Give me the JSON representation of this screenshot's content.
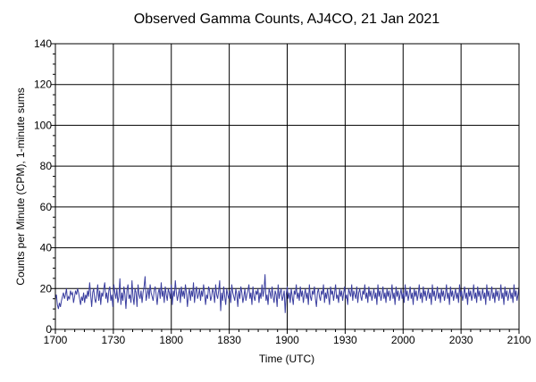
{
  "chart_data": {
    "type": "line",
    "title": "Observed Gamma Counts, AJ4CO, 21 Jan 2021",
    "xlabel": "Time (UTC)",
    "ylabel": "Counts per Minute (CPM), 1-minute sums",
    "x_ticks": [
      "1700",
      "1730",
      "1800",
      "1830",
      "1900",
      "1930",
      "2000",
      "2030",
      "2100"
    ],
    "y_ticks": [
      "0",
      "20",
      "40",
      "60",
      "80",
      "100",
      "120",
      "140"
    ],
    "xlim": [
      "1700",
      "2100"
    ],
    "ylim": [
      0,
      140
    ],
    "grid": true,
    "series": [
      {
        "color": "#3b3fa0",
        "x_start": "1700",
        "x_end": "2100",
        "interval": "1 minute",
        "values": [
          15,
          17,
          12,
          10,
          13,
          11,
          14,
          16,
          18,
          15,
          17,
          20,
          14,
          16,
          15,
          19,
          17,
          18,
          13,
          16,
          19,
          17,
          20,
          18,
          15,
          12,
          16,
          14,
          18,
          13,
          17,
          15,
          19,
          16,
          23,
          17,
          11,
          18,
          20,
          15,
          13,
          17,
          22,
          14,
          19,
          12,
          18,
          16,
          20,
          23,
          15,
          18,
          13,
          19,
          21,
          14,
          17,
          11,
          22,
          18,
          15,
          20,
          13,
          16,
          25,
          12,
          18,
          14,
          21,
          17,
          10,
          19,
          22,
          15,
          17,
          13,
          24,
          16,
          12,
          20,
          18,
          11,
          22,
          17,
          15,
          19,
          13,
          18,
          21,
          26,
          14,
          17,
          20,
          15,
          22,
          18,
          16,
          14,
          19,
          21,
          17,
          12,
          18,
          20,
          15,
          23,
          16,
          19,
          13,
          21,
          17,
          14,
          20,
          18,
          15,
          22,
          12,
          19,
          16,
          24,
          18,
          14,
          17,
          20,
          13,
          21,
          16,
          19,
          15,
          22,
          18,
          11,
          17,
          20,
          14,
          19,
          16,
          23,
          13,
          18,
          21,
          15,
          17,
          20,
          14,
          19,
          16,
          22,
          18,
          12,
          17,
          15,
          21,
          19,
          14,
          16,
          20,
          18,
          13,
          22,
          17,
          15,
          19,
          24,
          9,
          18,
          14,
          21,
          16,
          12,
          20,
          17,
          15,
          19,
          13,
          22,
          18,
          16,
          14,
          20,
          17,
          11,
          19,
          15,
          21,
          18,
          13,
          16,
          20,
          14,
          17,
          19,
          22,
          15,
          18,
          12,
          21,
          16,
          14,
          19,
          17,
          20,
          13,
          18,
          15,
          22,
          16,
          19,
          27,
          14,
          17,
          12,
          20,
          18,
          15,
          21,
          16,
          13,
          19,
          17,
          11,
          22,
          15,
          18,
          20,
          14,
          16,
          19,
          8,
          17,
          21,
          15,
          18,
          13,
          20,
          16,
          12,
          19,
          17,
          22,
          15,
          18,
          14,
          21,
          16,
          19,
          13,
          17,
          20,
          15,
          18,
          12,
          22,
          16,
          14,
          19,
          17,
          21,
          15,
          11,
          18,
          20,
          16,
          14,
          19,
          17,
          22,
          13,
          18,
          15,
          20,
          16,
          12,
          21,
          17,
          19,
          14,
          18,
          22,
          15,
          17,
          13,
          20,
          16,
          19,
          14,
          18,
          21,
          15,
          17,
          12,
          20,
          18,
          16,
          22,
          14,
          19,
          17,
          15,
          21,
          13,
          18,
          20,
          16,
          14,
          19,
          17,
          22,
          15,
          18,
          13,
          21,
          16,
          19,
          14,
          17,
          20,
          15,
          18,
          12,
          22,
          16,
          19,
          14,
          17,
          21,
          15,
          18,
          13,
          20,
          16,
          19,
          14,
          17,
          22,
          15,
          18,
          12,
          21,
          16,
          19,
          14,
          17,
          20,
          15,
          18,
          13,
          22,
          16,
          19,
          14,
          17,
          21,
          15,
          18,
          12,
          20,
          16,
          19,
          14,
          17,
          22,
          15,
          18,
          13,
          21,
          16,
          19,
          14,
          17,
          20,
          15,
          18,
          12,
          22,
          16,
          19,
          14,
          17,
          21,
          15,
          18,
          13,
          20,
          16,
          19,
          14,
          17,
          22,
          15,
          18,
          12,
          21,
          16,
          19,
          14,
          17,
          20,
          15,
          18,
          13,
          22,
          16,
          19,
          14,
          17,
          21,
          15,
          18,
          12,
          20,
          16,
          19,
          14,
          17,
          22,
          15,
          18,
          13,
          21,
          16,
          19,
          14,
          17,
          20,
          15,
          18,
          12,
          22,
          16,
          19,
          14,
          17,
          21,
          15,
          18,
          13,
          20,
          16,
          19,
          14,
          17,
          22,
          15,
          18,
          12,
          21,
          16,
          19,
          14,
          17,
          20,
          15,
          18,
          13,
          22,
          16,
          19,
          14,
          17,
          21
        ]
      }
    ]
  }
}
